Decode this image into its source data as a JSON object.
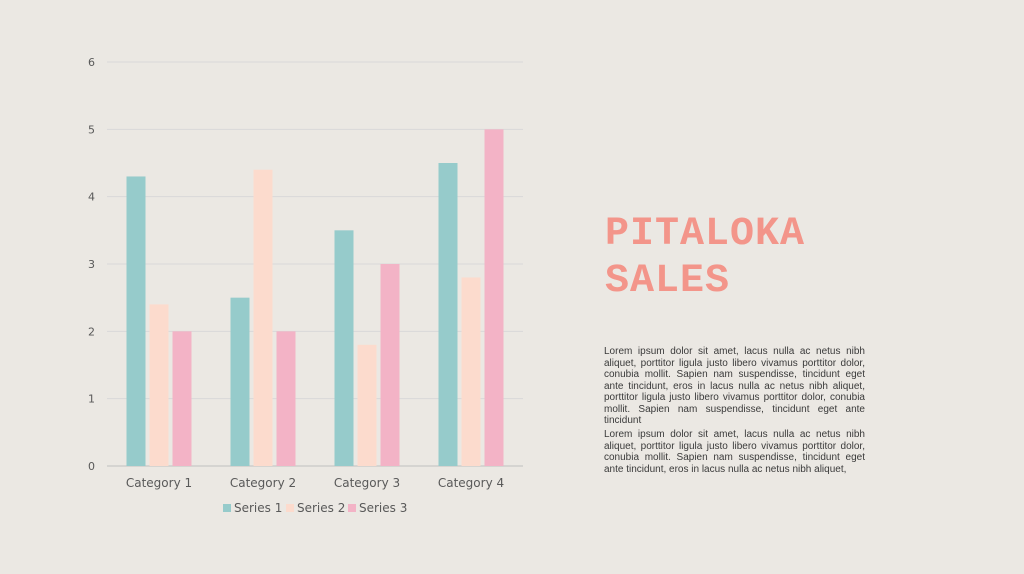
{
  "title_lines": [
    "PITALOKA",
    "SALES"
  ],
  "paragraphs": [
    "Lorem ipsum dolor sit amet, lacus nulla ac netus nibh aliquet, porttitor ligula justo libero vivamus porttitor dolor, conubia mollit. Sapien nam suspendisse, tincidunt eget ante tincidunt, eros in lacus nulla ac netus nibh aliquet, porttitor ligula justo libero vivamus porttitor dolor, conubia mollit. Sapien nam suspendisse, tincidunt eget ante tincidunt",
    "Lorem ipsum dolor sit amet, lacus nulla ac netus nibh aliquet, porttitor ligula justo libero vivamus porttitor dolor, conubia mollit. Sapien nam suspendisse, tincidunt eget ante tincidunt, eros in lacus nulla ac netus nibh aliquet,"
  ],
  "colors": {
    "background": "#ebe8e3",
    "title": "#f3958a",
    "gridline": "#d9d9d9"
  },
  "chart_data": {
    "type": "bar",
    "categories": [
      "Category 1",
      "Category 2",
      "Category 3",
      "Category 4"
    ],
    "series": [
      {
        "name": "Series 1",
        "values": [
          4.3,
          2.5,
          3.5,
          4.5
        ],
        "color": "#96cbcb"
      },
      {
        "name": "Series 2",
        "values": [
          2.4,
          4.4,
          1.8,
          2.8
        ],
        "color": "#fcdbcd"
      },
      {
        "name": "Series 3",
        "values": [
          2,
          2,
          3,
          5
        ],
        "color": "#f3b3c6"
      }
    ],
    "ylim": [
      0,
      6
    ],
    "yticks": [
      "0",
      "1",
      "2",
      "3",
      "4",
      "5",
      "6"
    ],
    "grid": true,
    "legend": "bottom"
  }
}
